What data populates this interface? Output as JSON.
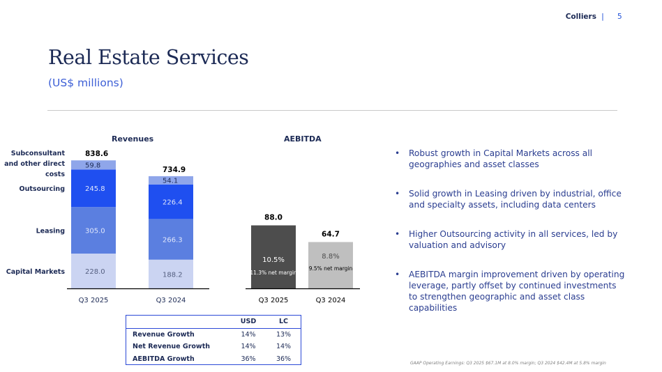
{
  "header": {
    "brand": "Colliers",
    "separator": "|",
    "page_number": "5"
  },
  "title": "Real Estate Services",
  "subtitle": "(US$ millions)",
  "colors": {
    "navy": "#1c2a55",
    "capital_markets": "#cbd4f2",
    "leasing": "#5b7fe0",
    "outsourcing": "#1f4ff0",
    "subconsultant": "#8fa6ea",
    "aebitda_2025": "#4d4d4d",
    "aebitda_2024": "#bfbfbf"
  },
  "chart_data": [
    {
      "type": "bar",
      "stacked": true,
      "title": "Revenues",
      "categories": [
        "Q3 2025",
        "Q3 2024"
      ],
      "series": [
        {
          "name": "Capital Markets",
          "values": [
            228.0,
            188.2
          ],
          "labels": [
            "228.0",
            "188.2"
          ]
        },
        {
          "name": "Leasing",
          "values": [
            305.0,
            266.3
          ],
          "labels": [
            "305.0",
            "266.3"
          ]
        },
        {
          "name": "Outsourcing",
          "values": [
            245.8,
            226.4
          ],
          "labels": [
            "245.8",
            "226.4"
          ]
        },
        {
          "name": "Subconsultant and other direct costs",
          "values": [
            59.8,
            54.1
          ],
          "labels": [
            "59.8",
            "54.1"
          ]
        }
      ],
      "totals": [
        "838.6",
        "734.9"
      ],
      "row_labels": [
        "Capital Markets",
        "Leasing",
        "Outsourcing",
        "Subconsultant",
        "and other direct",
        "costs"
      ]
    },
    {
      "type": "bar",
      "title": "AEBITDA",
      "categories": [
        "Q3 2025",
        "Q3 2024"
      ],
      "values": [
        88.0,
        64.7
      ],
      "value_labels": [
        "88.0",
        "64.7"
      ],
      "margins": [
        "10.5%",
        "8.8%"
      ],
      "net_margins": [
        "11.3% net margin",
        "9.5% net margin"
      ]
    }
  ],
  "growth_table": {
    "columns": [
      "USD",
      "LC"
    ],
    "rows": [
      {
        "label": "Revenue Growth",
        "usd": "14%",
        "lc": "13%"
      },
      {
        "label": "Net Revenue Growth",
        "usd": "14%",
        "lc": "14%"
      },
      {
        "label": "AEBITDA Growth",
        "usd": "36%",
        "lc": "36%"
      }
    ]
  },
  "bullets": [
    "Robust growth in Capital Markets across all geographies and asset classes",
    "Solid growth in Leasing driven by industrial, office and specialty assets, including data centers",
    "Higher Outsourcing activity in all services, led by valuation and advisory",
    "AEBITDA margin improvement driven by operating leverage, partly offset by continued investments to strengthen geographic and asset class capabilities"
  ],
  "bullet_symbol": "•",
  "footnote": "GAAP Operating Earnings: Q3 2025 $67.1M at 8.0% margin; Q3 2024 $42.4M at 5.8% margin"
}
